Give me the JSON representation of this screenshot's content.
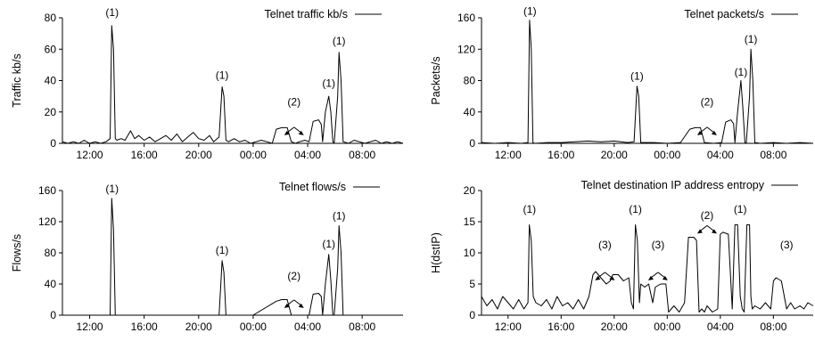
{
  "chart_data": [
    {
      "type": "line",
      "legend": "Telnet traffic kb/s",
      "ylabel": "Traffic kb/s",
      "ylim": [
        0,
        80
      ],
      "yticks": [
        0,
        20,
        40,
        60,
        80
      ],
      "xlim": [
        10.0,
        35.0
      ],
      "xticks": [
        12,
        16,
        20,
        24,
        28,
        32
      ],
      "xticklabels": [
        "12:00",
        "16:00",
        "20:00",
        "00:00",
        "04:00",
        "08:00"
      ],
      "series": [
        {
          "x": [
            10.0,
            10.4,
            10.8,
            11.2,
            11.6,
            12.0,
            12.4,
            12.8,
            13.2,
            13.5,
            13.62,
            13.75,
            13.88,
            14.0,
            14.3,
            14.6,
            15.0,
            15.3,
            15.6,
            16.0,
            16.4,
            16.8,
            17.2,
            17.6,
            18.0,
            18.4,
            18.8,
            19.2,
            19.6,
            20.0,
            20.4,
            20.8,
            21.1,
            21.5,
            21.72,
            21.85,
            22.0,
            22.2,
            22.6,
            23.0,
            23.4,
            23.8,
            24.2,
            24.6,
            25.0,
            25.4,
            25.7,
            26.1,
            26.5,
            26.8,
            27.1,
            27.4,
            27.8,
            28.1,
            28.4,
            28.8,
            29.0,
            29.1,
            29.3,
            29.55,
            29.7,
            29.85,
            29.95,
            30.2,
            30.3,
            30.45,
            30.6,
            31.0,
            31.4,
            31.8,
            32.2,
            32.6,
            33.0,
            33.4,
            33.8,
            34.2,
            34.6,
            35.0
          ],
          "values": [
            1,
            0,
            1,
            0,
            2,
            0,
            1,
            0,
            1,
            3,
            75,
            60,
            3,
            2,
            3,
            2,
            8,
            3,
            5,
            2,
            4,
            1,
            3,
            5,
            2,
            6,
            1,
            4,
            7,
            3,
            2,
            5,
            1,
            4,
            36,
            30,
            2,
            1,
            3,
            1,
            2,
            0,
            1,
            2,
            1,
            0,
            9,
            10,
            10,
            1,
            0,
            1,
            2,
            1,
            14,
            15,
            12,
            1,
            20,
            30,
            20,
            1,
            0,
            30,
            58,
            40,
            1,
            0,
            2,
            1,
            0,
            1,
            2,
            0,
            1,
            0,
            1,
            0
          ]
        }
      ],
      "annotations": [
        {
          "text": "(1)",
          "x": 13.65,
          "y": 81
        },
        {
          "text": "(1)",
          "x": 21.72,
          "y": 41
        },
        {
          "text": "(1)",
          "x": 29.55,
          "y": 36
        },
        {
          "text": "(1)",
          "x": 30.3,
          "y": 63
        },
        {
          "text": "(2)",
          "x": 27.0,
          "y": 24
        }
      ]
    },
    {
      "type": "line",
      "legend": "Telnet packets/s",
      "ylabel": "Packets/s",
      "ylim": [
        0,
        160
      ],
      "yticks": [
        0,
        40,
        80,
        120,
        160
      ],
      "xlim": [
        10.0,
        35.0
      ],
      "xticks": [
        12,
        16,
        20,
        24,
        28,
        32
      ],
      "xticklabels": [
        "12:00",
        "16:00",
        "20:00",
        "00:00",
        "04:00",
        "08:00"
      ],
      "series": [
        {
          "x": [
            10.0,
            11.0,
            12.0,
            13.0,
            13.5,
            13.62,
            13.75,
            13.88,
            14.0,
            15.0,
            16.0,
            17.0,
            18.0,
            19.0,
            20.0,
            21.0,
            21.5,
            21.72,
            21.85,
            22.0,
            23.0,
            24.0,
            25.0,
            25.7,
            26.1,
            26.5,
            26.8,
            27.5,
            28.1,
            28.4,
            28.8,
            29.0,
            29.1,
            29.3,
            29.55,
            29.7,
            29.85,
            29.95,
            30.2,
            30.3,
            30.45,
            30.6,
            31.0,
            32.0,
            33.0,
            34.0,
            35.0
          ],
          "values": [
            1,
            0,
            1,
            0,
            1,
            157,
            120,
            1,
            0,
            1,
            1,
            2,
            3,
            2,
            3,
            1,
            2,
            73,
            60,
            1,
            1,
            0,
            1,
            18,
            20,
            20,
            1,
            0,
            1,
            27,
            30,
            25,
            1,
            40,
            80,
            45,
            1,
            0,
            60,
            120,
            80,
            1,
            0,
            1,
            0,
            1,
            0
          ]
        }
      ],
      "annotations": [
        {
          "text": "(1)",
          "x": 13.65,
          "y": 164
        },
        {
          "text": "(1)",
          "x": 21.72,
          "y": 81
        },
        {
          "text": "(1)",
          "x": 29.55,
          "y": 86
        },
        {
          "text": "(1)",
          "x": 30.3,
          "y": 128
        },
        {
          "text": "(2)",
          "x": 27.0,
          "y": 48
        }
      ]
    },
    {
      "type": "line",
      "legend": "Telnet flows/s",
      "ylabel": "Flows/s",
      "ylim": [
        0,
        160
      ],
      "yticks": [
        0,
        40,
        80,
        120,
        160
      ],
      "xlim": [
        10.0,
        35.0
      ],
      "xticks": [
        12,
        16,
        20,
        24,
        28,
        32
      ],
      "xticklabels": [
        "12:00",
        "16:00",
        "20:00",
        "00:00",
        "04:00",
        "08:00"
      ],
      "series": [
        {
          "x": [
            10.0,
            12.0,
            13.5,
            13.62,
            13.75,
            13.88,
            14.0,
            16.0,
            18.0,
            20.0,
            21.5,
            21.72,
            21.85,
            22.0,
            24.0,
            25.7,
            26.1,
            26.5,
            26.8,
            28.1,
            28.4,
            28.8,
            29.0,
            29.1,
            29.3,
            29.55,
            29.7,
            29.85,
            29.95,
            30.2,
            30.3,
            30.45,
            30.6,
            32.0,
            35.0
          ],
          "values": [
            0,
            0,
            0,
            150,
            110,
            0,
            0,
            0,
            0,
            0,
            0,
            70,
            55,
            0,
            0,
            18,
            20,
            20,
            0,
            0,
            27,
            28,
            24,
            0,
            40,
            78,
            45,
            0,
            0,
            60,
            115,
            80,
            0,
            0,
            0
          ]
        }
      ],
      "annotations": [
        {
          "text": "(1)",
          "x": 13.65,
          "y": 158
        },
        {
          "text": "(1)",
          "x": 21.72,
          "y": 79
        },
        {
          "text": "(1)",
          "x": 29.55,
          "y": 87
        },
        {
          "text": "(1)",
          "x": 30.3,
          "y": 123
        },
        {
          "text": "(2)",
          "x": 27.0,
          "y": 46
        }
      ]
    },
    {
      "type": "line",
      "legend": "Telnet destination IP address entropy",
      "ylabel": "H(dstIP)",
      "ylim": [
        0,
        20
      ],
      "yticks": [
        0,
        5,
        10,
        15,
        20
      ],
      "xlim": [
        10.0,
        35.0
      ],
      "xticks": [
        12,
        16,
        20,
        24,
        28,
        32
      ],
      "xticklabels": [
        "12:00",
        "16:00",
        "20:00",
        "00:00",
        "04:00",
        "08:00"
      ],
      "series": [
        {
          "x": [
            10.0,
            10.4,
            10.8,
            11.2,
            11.6,
            12.0,
            12.4,
            12.8,
            13.2,
            13.5,
            13.6,
            13.75,
            13.9,
            14.1,
            14.5,
            14.9,
            15.3,
            15.7,
            16.1,
            16.5,
            16.9,
            17.3,
            17.7,
            18.1,
            18.4,
            18.6,
            19.0,
            19.4,
            19.7,
            19.9,
            20.3,
            20.7,
            21.1,
            21.3,
            21.45,
            21.6,
            21.75,
            21.9,
            22.0,
            22.3,
            22.6,
            22.9,
            23.1,
            23.5,
            23.9,
            24.1,
            24.5,
            24.9,
            25.3,
            25.6,
            25.8,
            26.0,
            26.2,
            26.4,
            26.6,
            26.8,
            27.0,
            27.4,
            27.8,
            28.0,
            28.2,
            28.6,
            28.9,
            29.1,
            29.3,
            29.5,
            29.65,
            29.8,
            30.0,
            30.2,
            30.3,
            30.4,
            30.6,
            31.0,
            31.4,
            31.8,
            32.0,
            32.2,
            32.6,
            33.0,
            33.3,
            33.6,
            34.0,
            34.3,
            34.6,
            35.0
          ],
          "values": [
            3,
            1.5,
            2.5,
            1,
            3,
            2,
            1,
            2.5,
            1,
            2,
            14.5,
            12,
            3,
            2,
            1.5,
            2.5,
            1,
            3,
            1.5,
            2,
            1,
            2.5,
            1,
            3,
            6.5,
            7,
            6,
            5,
            5.5,
            6.5,
            6.5,
            5.5,
            6,
            2,
            1,
            14.5,
            12,
            2,
            5,
            4.5,
            5,
            2,
            4.5,
            5,
            5,
            0.5,
            1.5,
            0.5,
            2,
            12.5,
            12.5,
            12.5,
            12,
            0.5,
            1,
            0.5,
            1.5,
            0.5,
            1,
            13,
            13.3,
            13,
            1,
            14.5,
            14.5,
            3,
            1,
            0.5,
            14.5,
            14.5,
            3,
            1,
            1.5,
            1,
            2,
            1,
            5.5,
            6,
            5.5,
            1,
            2,
            1,
            1.5,
            1,
            2,
            1.5
          ]
        }
      ],
      "annotations": [
        {
          "text": "(1)",
          "x": 13.62,
          "y": 16.4
        },
        {
          "text": "(1)",
          "x": 21.6,
          "y": 16.4
        },
        {
          "text": "(1)",
          "x": 29.5,
          "y": 16.4
        },
        {
          "text": "(2)",
          "x": 27.0,
          "y": 15.4
        },
        {
          "text": "(3)",
          "x": 19.3,
          "y": 10.7
        },
        {
          "text": "(3)",
          "x": 23.3,
          "y": 10.7
        },
        {
          "text": "(3)",
          "x": 33.0,
          "y": 10.7
        }
      ]
    }
  ]
}
